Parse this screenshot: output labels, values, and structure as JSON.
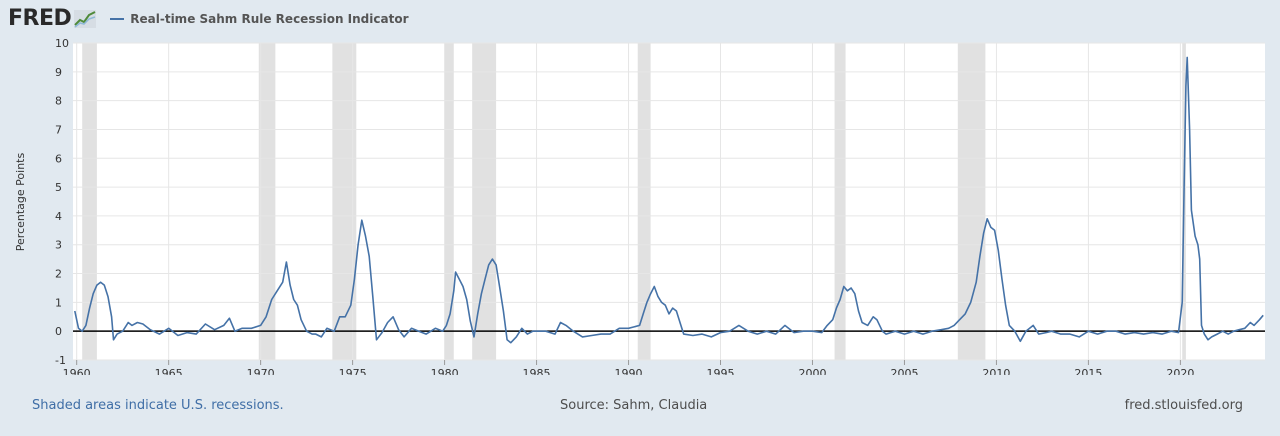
{
  "brand": {
    "logo_text": "FRED"
  },
  "legend": {
    "series_label": "Real-time Sahm Rule Recession Indicator",
    "line_color": "#4572a7"
  },
  "footer": {
    "note": "Shaded areas indicate U.S. recessions.",
    "source": "Source: Sahm, Claudia",
    "site": "fred.stlouisfed.org"
  },
  "chart_data": {
    "type": "line",
    "ylabel": "Percentage Points",
    "xlim": [
      1959.8,
      2024.6
    ],
    "ylim": [
      -1,
      10
    ],
    "x_ticks": [
      1960,
      1965,
      1970,
      1975,
      1980,
      1985,
      1990,
      1995,
      2000,
      2005,
      2010,
      2015,
      2020
    ],
    "y_ticks": [
      -1,
      0,
      1,
      2,
      3,
      4,
      5,
      6,
      7,
      8,
      9,
      10
    ],
    "grid": true,
    "recession_shading": [
      [
        1960.3,
        1961.1
      ],
      [
        1969.9,
        1970.8
      ],
      [
        1973.9,
        1975.2
      ],
      [
        1980.0,
        1980.5
      ],
      [
        1981.5,
        1982.8
      ],
      [
        1990.5,
        1991.2
      ],
      [
        2001.2,
        2001.8
      ],
      [
        2007.9,
        2009.4
      ],
      [
        2020.1,
        2020.3
      ]
    ],
    "series": [
      {
        "name": "Real-time Sahm Rule Recession Indicator",
        "color": "#4572a7",
        "points": [
          [
            1959.9,
            0.7
          ],
          [
            1960.1,
            0.1
          ],
          [
            1960.3,
            0.0
          ],
          [
            1960.5,
            0.2
          ],
          [
            1960.7,
            0.8
          ],
          [
            1960.9,
            1.3
          ],
          [
            1961.1,
            1.6
          ],
          [
            1961.3,
            1.7
          ],
          [
            1961.5,
            1.6
          ],
          [
            1961.7,
            1.2
          ],
          [
            1961.9,
            0.5
          ],
          [
            1962.0,
            -0.3
          ],
          [
            1962.2,
            -0.1
          ],
          [
            1962.5,
            0.0
          ],
          [
            1962.8,
            0.3
          ],
          [
            1963.0,
            0.2
          ],
          [
            1963.3,
            0.3
          ],
          [
            1963.6,
            0.25
          ],
          [
            1964.0,
            0.05
          ],
          [
            1964.5,
            -0.1
          ],
          [
            1965.0,
            0.1
          ],
          [
            1965.5,
            -0.15
          ],
          [
            1966.0,
            -0.05
          ],
          [
            1966.5,
            -0.1
          ],
          [
            1967.0,
            0.25
          ],
          [
            1967.5,
            0.05
          ],
          [
            1968.0,
            0.2
          ],
          [
            1968.3,
            0.45
          ],
          [
            1968.6,
            0.0
          ],
          [
            1969.0,
            0.1
          ],
          [
            1969.5,
            0.1
          ],
          [
            1970.0,
            0.2
          ],
          [
            1970.3,
            0.5
          ],
          [
            1970.6,
            1.1
          ],
          [
            1970.9,
            1.4
          ],
          [
            1971.2,
            1.7
          ],
          [
            1971.4,
            2.4
          ],
          [
            1971.6,
            1.6
          ],
          [
            1971.8,
            1.1
          ],
          [
            1972.0,
            0.9
          ],
          [
            1972.2,
            0.4
          ],
          [
            1972.5,
            0.0
          ],
          [
            1972.8,
            -0.1
          ],
          [
            1973.0,
            -0.1
          ],
          [
            1973.3,
            -0.2
          ],
          [
            1973.6,
            0.1
          ],
          [
            1974.0,
            0.0
          ],
          [
            1974.3,
            0.5
          ],
          [
            1974.6,
            0.5
          ],
          [
            1974.9,
            0.9
          ],
          [
            1975.1,
            1.8
          ],
          [
            1975.3,
            3.0
          ],
          [
            1975.5,
            3.85
          ],
          [
            1975.7,
            3.3
          ],
          [
            1975.9,
            2.6
          ],
          [
            1976.1,
            1.2
          ],
          [
            1976.3,
            -0.3
          ],
          [
            1976.6,
            -0.05
          ],
          [
            1976.9,
            0.3
          ],
          [
            1977.2,
            0.5
          ],
          [
            1977.5,
            0.05
          ],
          [
            1977.8,
            -0.2
          ],
          [
            1978.2,
            0.1
          ],
          [
            1978.6,
            0.0
          ],
          [
            1979.0,
            -0.1
          ],
          [
            1979.5,
            0.1
          ],
          [
            1979.9,
            0.0
          ],
          [
            1980.1,
            0.2
          ],
          [
            1980.3,
            0.6
          ],
          [
            1980.5,
            1.4
          ],
          [
            1980.6,
            2.05
          ],
          [
            1980.8,
            1.8
          ],
          [
            1981.0,
            1.55
          ],
          [
            1981.2,
            1.1
          ],
          [
            1981.4,
            0.35
          ],
          [
            1981.6,
            -0.2
          ],
          [
            1981.8,
            0.6
          ],
          [
            1982.0,
            1.3
          ],
          [
            1982.2,
            1.8
          ],
          [
            1982.4,
            2.3
          ],
          [
            1982.6,
            2.5
          ],
          [
            1982.8,
            2.3
          ],
          [
            1983.0,
            1.5
          ],
          [
            1983.2,
            0.7
          ],
          [
            1983.4,
            -0.3
          ],
          [
            1983.6,
            -0.4
          ],
          [
            1983.9,
            -0.2
          ],
          [
            1984.2,
            0.1
          ],
          [
            1984.5,
            -0.1
          ],
          [
            1984.8,
            0.0
          ],
          [
            1985.0,
            0.0
          ],
          [
            1985.5,
            0.0
          ],
          [
            1986.0,
            -0.1
          ],
          [
            1986.3,
            0.3
          ],
          [
            1986.6,
            0.2
          ],
          [
            1987.0,
            0.0
          ],
          [
            1987.5,
            -0.2
          ],
          [
            1988.0,
            -0.15
          ],
          [
            1988.5,
            -0.1
          ],
          [
            1989.0,
            -0.1
          ],
          [
            1989.5,
            0.1
          ],
          [
            1990.0,
            0.1
          ],
          [
            1990.3,
            0.15
          ],
          [
            1990.6,
            0.2
          ],
          [
            1990.8,
            0.6
          ],
          [
            1991.0,
            1.0
          ],
          [
            1991.2,
            1.3
          ],
          [
            1991.4,
            1.55
          ],
          [
            1991.6,
            1.2
          ],
          [
            1991.8,
            1.0
          ],
          [
            1992.0,
            0.9
          ],
          [
            1992.2,
            0.6
          ],
          [
            1992.4,
            0.8
          ],
          [
            1992.6,
            0.7
          ],
          [
            1992.8,
            0.3
          ],
          [
            1993.0,
            -0.1
          ],
          [
            1993.5,
            -0.15
          ],
          [
            1994.0,
            -0.1
          ],
          [
            1994.5,
            -0.2
          ],
          [
            1995.0,
            -0.05
          ],
          [
            1995.5,
            0.0
          ],
          [
            1996.0,
            0.2
          ],
          [
            1996.5,
            0.0
          ],
          [
            1997.0,
            -0.1
          ],
          [
            1997.5,
            0.0
          ],
          [
            1998.0,
            -0.1
          ],
          [
            1998.5,
            0.2
          ],
          [
            1999.0,
            -0.05
          ],
          [
            1999.5,
            0.0
          ],
          [
            2000.0,
            0.0
          ],
          [
            2000.5,
            -0.05
          ],
          [
            2000.8,
            0.2
          ],
          [
            2001.1,
            0.4
          ],
          [
            2001.3,
            0.8
          ],
          [
            2001.5,
            1.1
          ],
          [
            2001.7,
            1.55
          ],
          [
            2001.9,
            1.4
          ],
          [
            2002.1,
            1.5
          ],
          [
            2002.3,
            1.3
          ],
          [
            2002.5,
            0.7
          ],
          [
            2002.7,
            0.3
          ],
          [
            2003.0,
            0.2
          ],
          [
            2003.3,
            0.5
          ],
          [
            2003.5,
            0.4
          ],
          [
            2003.8,
            0.0
          ],
          [
            2004.0,
            -0.1
          ],
          [
            2004.5,
            0.0
          ],
          [
            2005.0,
            -0.1
          ],
          [
            2005.5,
            0.0
          ],
          [
            2006.0,
            -0.1
          ],
          [
            2006.5,
            0.0
          ],
          [
            2007.0,
            0.05
          ],
          [
            2007.4,
            0.1
          ],
          [
            2007.7,
            0.2
          ],
          [
            2008.0,
            0.4
          ],
          [
            2008.3,
            0.6
          ],
          [
            2008.6,
            1.0
          ],
          [
            2008.9,
            1.7
          ],
          [
            2009.1,
            2.6
          ],
          [
            2009.3,
            3.4
          ],
          [
            2009.5,
            3.9
          ],
          [
            2009.7,
            3.6
          ],
          [
            2009.9,
            3.5
          ],
          [
            2010.1,
            2.8
          ],
          [
            2010.3,
            1.8
          ],
          [
            2010.5,
            0.9
          ],
          [
            2010.7,
            0.2
          ],
          [
            2011.0,
            0.0
          ],
          [
            2011.3,
            -0.35
          ],
          [
            2011.6,
            0.0
          ],
          [
            2012.0,
            0.2
          ],
          [
            2012.3,
            -0.1
          ],
          [
            2012.7,
            -0.05
          ],
          [
            2013.0,
            0.0
          ],
          [
            2013.5,
            -0.1
          ],
          [
            2014.0,
            -0.1
          ],
          [
            2014.5,
            -0.2
          ],
          [
            2015.0,
            0.0
          ],
          [
            2015.5,
            -0.1
          ],
          [
            2016.0,
            0.0
          ],
          [
            2016.5,
            0.0
          ],
          [
            2017.0,
            -0.1
          ],
          [
            2017.5,
            -0.05
          ],
          [
            2018.0,
            -0.1
          ],
          [
            2018.5,
            -0.05
          ],
          [
            2019.0,
            -0.1
          ],
          [
            2019.5,
            0.0
          ],
          [
            2019.9,
            -0.05
          ],
          [
            2020.1,
            1.0
          ],
          [
            2020.2,
            5.0
          ],
          [
            2020.3,
            8.5
          ],
          [
            2020.37,
            9.5
          ],
          [
            2020.5,
            7.0
          ],
          [
            2020.6,
            4.2
          ],
          [
            2020.8,
            3.3
          ],
          [
            2020.95,
            3.0
          ],
          [
            2021.05,
            2.5
          ],
          [
            2021.15,
            0.2
          ],
          [
            2021.3,
            -0.1
          ],
          [
            2021.5,
            -0.3
          ],
          [
            2021.7,
            -0.2
          ],
          [
            2022.0,
            -0.1
          ],
          [
            2022.3,
            0.0
          ],
          [
            2022.6,
            -0.1
          ],
          [
            2022.9,
            0.0
          ],
          [
            2023.2,
            0.05
          ],
          [
            2023.5,
            0.1
          ],
          [
            2023.8,
            0.3
          ],
          [
            2024.0,
            0.2
          ],
          [
            2024.3,
            0.4
          ],
          [
            2024.5,
            0.55
          ]
        ]
      }
    ]
  }
}
